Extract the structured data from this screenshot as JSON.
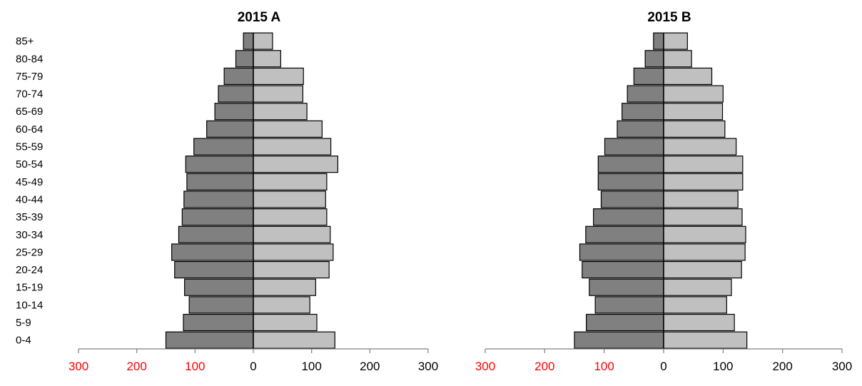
{
  "colors": {
    "left_bar": "#808080",
    "right_bar": "#c0c0c0",
    "bar_stroke": "#000000",
    "axis": "#808080",
    "negative_tick_label": "#ff0000",
    "positive_tick_label": "#000000"
  },
  "chart_data": [
    {
      "type": "bar",
      "title": "2015 A",
      "orientation": "horizontal",
      "layout": "population-pyramid",
      "categories": [
        "0-4",
        "5-9",
        "10-14",
        "15-19",
        "20-24",
        "25-29",
        "30-34",
        "35-39",
        "40-44",
        "45-49",
        "50-54",
        "55-59",
        "60-64",
        "65-69",
        "70-74",
        "75-79",
        "80-84",
        "85+"
      ],
      "series": [
        {
          "side": "left",
          "values": [
            150,
            120,
            110,
            118,
            135,
            140,
            128,
            122,
            119,
            114,
            116,
            102,
            80,
            66,
            60,
            50,
            30,
            17
          ]
        },
        {
          "side": "right",
          "values": [
            140,
            109,
            97,
            107,
            130,
            137,
            132,
            126,
            124,
            126,
            145,
            133,
            118,
            92,
            85,
            86,
            47,
            33
          ]
        }
      ],
      "show_category_labels": true,
      "xlim": [
        -300,
        300
      ],
      "xticks": [
        -300,
        -200,
        -100,
        0,
        100,
        200,
        300
      ],
      "xtick_labels": [
        "300",
        "200",
        "100",
        "0",
        "100",
        "200",
        "300"
      ],
      "xlabel": "",
      "ylabel": "",
      "grid": false,
      "legend": "none"
    },
    {
      "type": "bar",
      "title": "2015 B",
      "orientation": "horizontal",
      "layout": "population-pyramid",
      "categories": [
        "0-4",
        "5-9",
        "10-14",
        "15-19",
        "20-24",
        "25-29",
        "30-34",
        "35-39",
        "40-44",
        "45-49",
        "50-54",
        "55-59",
        "60-64",
        "65-69",
        "70-74",
        "75-79",
        "80-84",
        "85+"
      ],
      "series": [
        {
          "side": "left",
          "values": [
            150,
            130,
            115,
            125,
            137,
            141,
            131,
            118,
            105,
            110,
            110,
            99,
            78,
            70,
            61,
            50,
            31,
            17
          ]
        },
        {
          "side": "right",
          "values": [
            140,
            119,
            106,
            114,
            131,
            137,
            138,
            132,
            125,
            133,
            133,
            122,
            103,
            99,
            100,
            81,
            47,
            40
          ]
        }
      ],
      "show_category_labels": false,
      "xlim": [
        -300,
        300
      ],
      "xticks": [
        -300,
        -200,
        -100,
        0,
        100,
        200,
        300
      ],
      "xtick_labels": [
        "300",
        "200",
        "100",
        "0",
        "100",
        "200",
        "300"
      ],
      "xlabel": "",
      "ylabel": "",
      "grid": false,
      "legend": "none"
    }
  ]
}
